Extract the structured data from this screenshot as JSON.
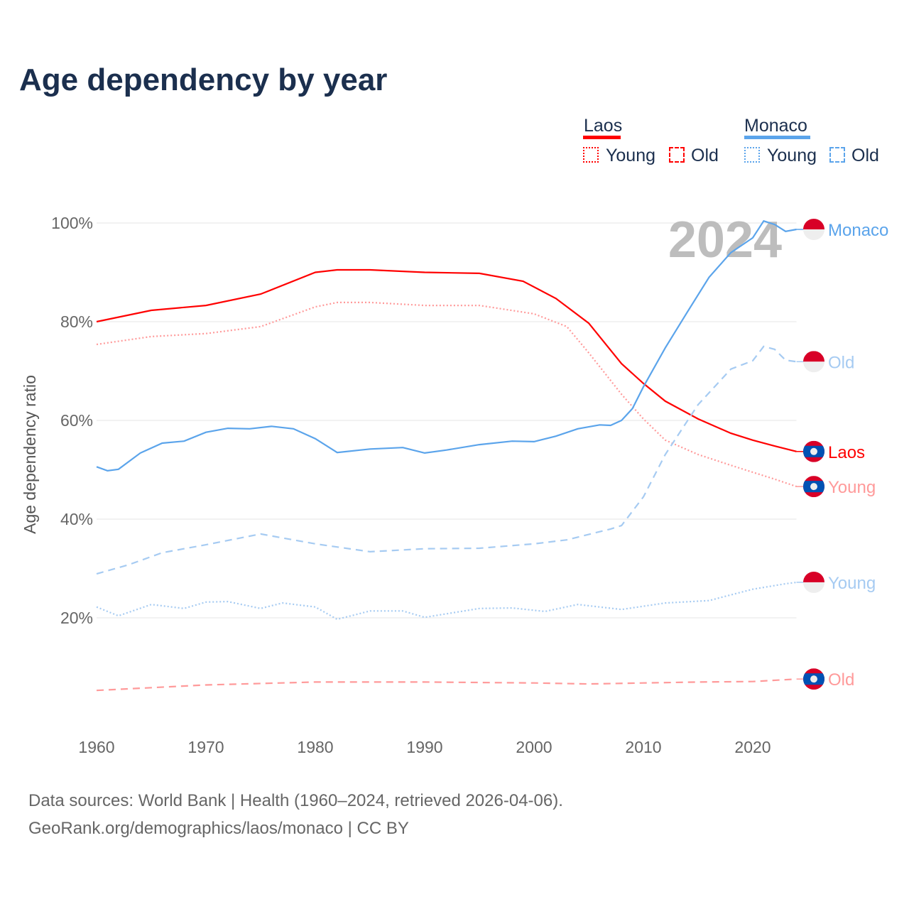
{
  "title": "Age dependency by year",
  "legend": {
    "laos": "Laos",
    "monaco": "Monaco",
    "young": "Young",
    "old": "Old"
  },
  "source_line1": "Data sources: World Bank | Health (1960–2024, retrieved 2026-04-06).",
  "source_line2": "GeoRank.org/demographics/laos/monaco | CC BY",
  "colors": {
    "laos": "#ff0000",
    "laos_light": "#ff9a9a",
    "monaco": "#5ba4eb",
    "monaco_light": "#a6cbf2",
    "title": "#1b2f4e"
  },
  "chart_data": {
    "type": "line",
    "title": "Age dependency by year",
    "ylabel": "Age dependency ratio",
    "xlim": [
      1960,
      2024
    ],
    "ylim": [
      0,
      100
    ],
    "year_overlay": "2024",
    "x_ticks": [
      "1960",
      "1970",
      "1980",
      "1990",
      "2000",
      "2010",
      "2020"
    ],
    "y_ticks": [
      "20%",
      "40%",
      "60%",
      "80%",
      "100%"
    ],
    "series": [
      {
        "name": "Laos",
        "label": "Laos",
        "country": "laos",
        "style": "solid",
        "color": "#ff0000",
        "x": [
          1960,
          1965,
          1970,
          1975,
          1980,
          1982,
          1985,
          1990,
          1995,
          1999,
          2002,
          2005,
          2008,
          2010,
          2012,
          2015,
          2018,
          2020,
          2022,
          2024
        ],
        "y": [
          80,
          82.3,
          83.3,
          85.6,
          90,
          90.5,
          90.5,
          90,
          89.8,
          88.2,
          84.7,
          79.7,
          71.5,
          67.5,
          63.9,
          60.3,
          57.4,
          56,
          54.8,
          53.7
        ]
      },
      {
        "name": "Laos Young",
        "label": "Young",
        "country": "laos",
        "style": "dotted",
        "color": "#ff9a9a",
        "x": [
          1960,
          1965,
          1970,
          1975,
          1980,
          1982,
          1985,
          1990,
          1995,
          2000,
          2003,
          2005,
          2008,
          2010,
          2012,
          2015,
          2018,
          2020,
          2022,
          2024
        ],
        "y": [
          75.4,
          77,
          77.6,
          79,
          83,
          83.9,
          83.9,
          83.3,
          83.3,
          81.6,
          79,
          73.7,
          65.3,
          60.3,
          56,
          53.1,
          50.9,
          49.5,
          48.1,
          46.6
        ]
      },
      {
        "name": "Laos Old",
        "label": "Old",
        "country": "laos",
        "style": "dashed",
        "color": "#ff9a9a",
        "x": [
          1960,
          1970,
          1980,
          1990,
          2000,
          2005,
          2010,
          2015,
          2020,
          2024
        ],
        "y": [
          5.3,
          6.4,
          7,
          7,
          6.8,
          6.6,
          6.8,
          7,
          7.1,
          7.6
        ]
      },
      {
        "name": "Monaco",
        "label": "Monaco",
        "country": "monaco",
        "style": "solid",
        "color": "#5ba4eb",
        "x": [
          1960,
          1961,
          1962,
          1964,
          1966,
          1968,
          1970,
          1972,
          1974,
          1976,
          1978,
          1980,
          1982,
          1985,
          1988,
          1990,
          1992,
          1995,
          1998,
          2000,
          2002,
          2004,
          2006,
          2007,
          2008,
          2009,
          2010,
          2012,
          2014,
          2016,
          2018,
          2020,
          2021,
          2022,
          2023,
          2024
        ],
        "y": [
          50.6,
          49.8,
          50.1,
          53.4,
          55.4,
          55.8,
          57.6,
          58.4,
          58.3,
          58.8,
          58.3,
          56.3,
          53.5,
          54.2,
          54.5,
          53.4,
          54,
          55.1,
          55.8,
          55.7,
          56.8,
          58.3,
          59.1,
          59,
          60,
          62.4,
          66.8,
          74.7,
          81.9,
          89,
          94,
          97,
          100.4,
          99.7,
          98.3,
          98.7
        ]
      },
      {
        "name": "Monaco Young",
        "label": "Young",
        "country": "monaco",
        "style": "dotted",
        "color": "#a6cbf2",
        "x": [
          1960,
          1962,
          1965,
          1968,
          1970,
          1972,
          1975,
          1977,
          1980,
          1982,
          1985,
          1988,
          1990,
          1995,
          1998,
          2001,
          2004,
          2008,
          2012,
          2016,
          2020,
          2023,
          2024
        ],
        "y": [
          22.2,
          20.4,
          22.7,
          21.9,
          23.2,
          23.3,
          21.9,
          23,
          22.2,
          19.7,
          21.4,
          21.4,
          20.1,
          21.9,
          22,
          21.3,
          22.7,
          21.7,
          23,
          23.5,
          25.8,
          26.9,
          27.2
        ]
      },
      {
        "name": "Monaco Old",
        "label": "Old",
        "country": "monaco",
        "style": "dashed",
        "color": "#a6cbf2",
        "x": [
          1960,
          1963,
          1966,
          1970,
          1975,
          1980,
          1985,
          1990,
          1995,
          2000,
          2003,
          2007,
          2008,
          2010,
          2012,
          2015,
          2018,
          2020,
          2021,
          2022,
          2023,
          2024
        ],
        "y": [
          28.9,
          30.8,
          33.2,
          34.8,
          37,
          35,
          33.4,
          34,
          34.1,
          35,
          35.8,
          38,
          38.7,
          44.5,
          53.1,
          63.2,
          70.4,
          72.1,
          75,
          74.4,
          72.2,
          71.9
        ]
      }
    ]
  }
}
